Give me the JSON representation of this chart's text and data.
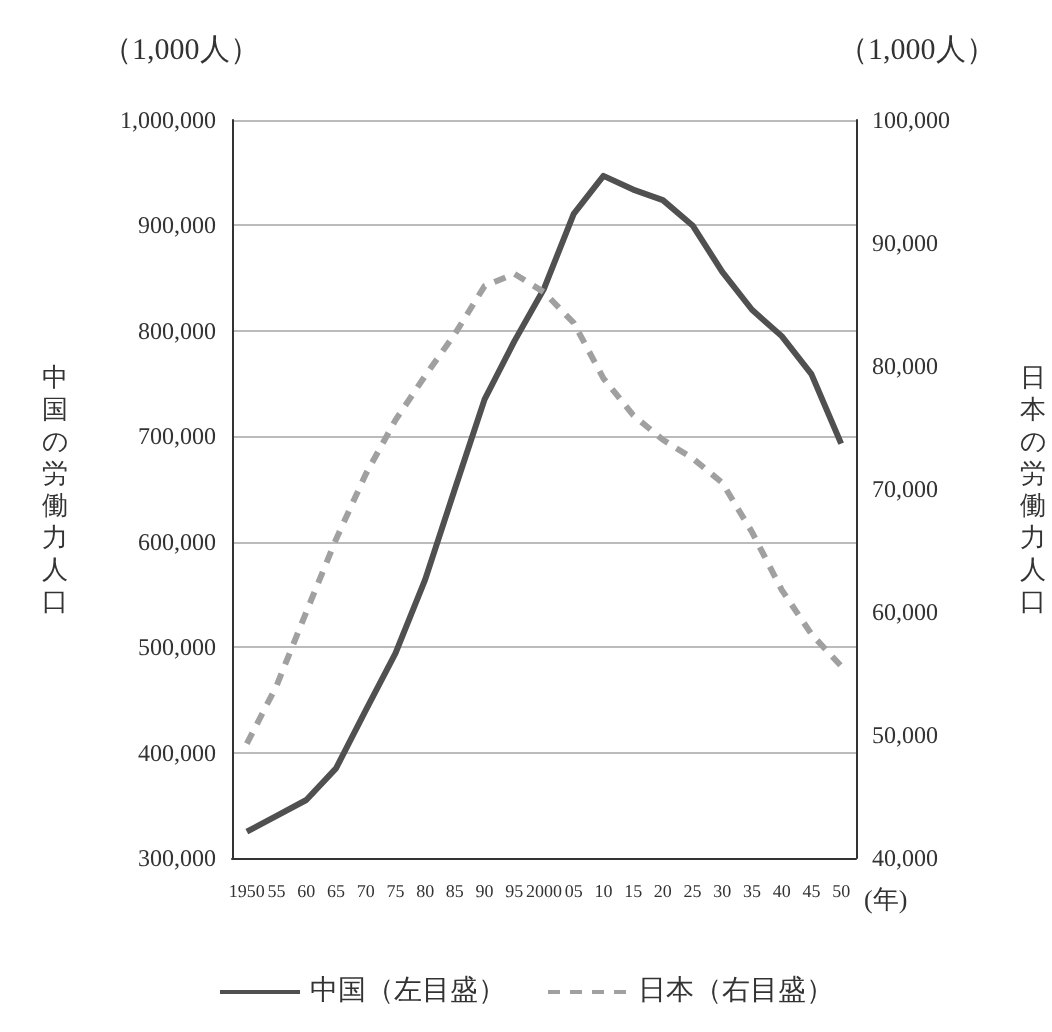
{
  "chart_data": {
    "type": "line",
    "categories": [
      "1950",
      "55",
      "60",
      "65",
      "70",
      "75",
      "80",
      "85",
      "90",
      "95",
      "2000",
      "05",
      "10",
      "15",
      "20",
      "25",
      "30",
      "35",
      "40",
      "45",
      "50"
    ],
    "series": [
      {
        "name": "中国（左目盛）",
        "color": "#505050",
        "line_style": "solid",
        "values": [
          325000,
          340000,
          355000,
          385000,
          440000,
          494000,
          564000,
          650000,
          735000,
          790000,
          840000,
          911000,
          947000,
          934000,
          924000,
          900000,
          856000,
          820000,
          795000,
          759000,
          693000
        ]
      },
      {
        "name": "日本（右目盛）",
        "color": "#a0a0a0",
        "line_style": "dashed",
        "axis": "y2",
        "values": [
          49300,
          54000,
          60000,
          65900,
          71200,
          75600,
          79200,
          82600,
          86500,
          87500,
          86000,
          83500,
          79000,
          76000,
          74000,
          72500,
          70500,
          66500,
          61800,
          58200,
          55600
        ]
      }
    ],
    "xlabel": "(年)",
    "ylabel": "中国の労働力人口",
    "y2label": "日本の労働力人口",
    "annotations": [
      "（1,000人）",
      "（1,000人）"
    ],
    "ylim": [
      300000,
      1000000
    ],
    "yticks": [
      {
        "value": 300000,
        "label": "300,000"
      },
      {
        "value": 400000,
        "label": "400,000"
      },
      {
        "value": 500000,
        "label": "500,000"
      },
      {
        "value": 600000,
        "label": "600,000"
      },
      {
        "value": 700000,
        "label": "700,000"
      },
      {
        "value": 800000,
        "label": "800,000"
      },
      {
        "value": 900000,
        "label": "900,000"
      },
      {
        "value": 1000000,
        "label": "1,000,000"
      }
    ],
    "y2lim": [
      40000,
      100000
    ],
    "y2ticks": [
      {
        "value": 40000,
        "label": "40,000"
      },
      {
        "value": 50000,
        "label": "50,000"
      },
      {
        "value": 60000,
        "label": "60,000"
      },
      {
        "value": 70000,
        "label": "70,000"
      },
      {
        "value": 80000,
        "label": "80,000"
      },
      {
        "value": 90000,
        "label": "90,000"
      },
      {
        "value": 100000,
        "label": "100,000"
      }
    ],
    "grid": "y",
    "legend": "bottom",
    "marker": "none"
  }
}
